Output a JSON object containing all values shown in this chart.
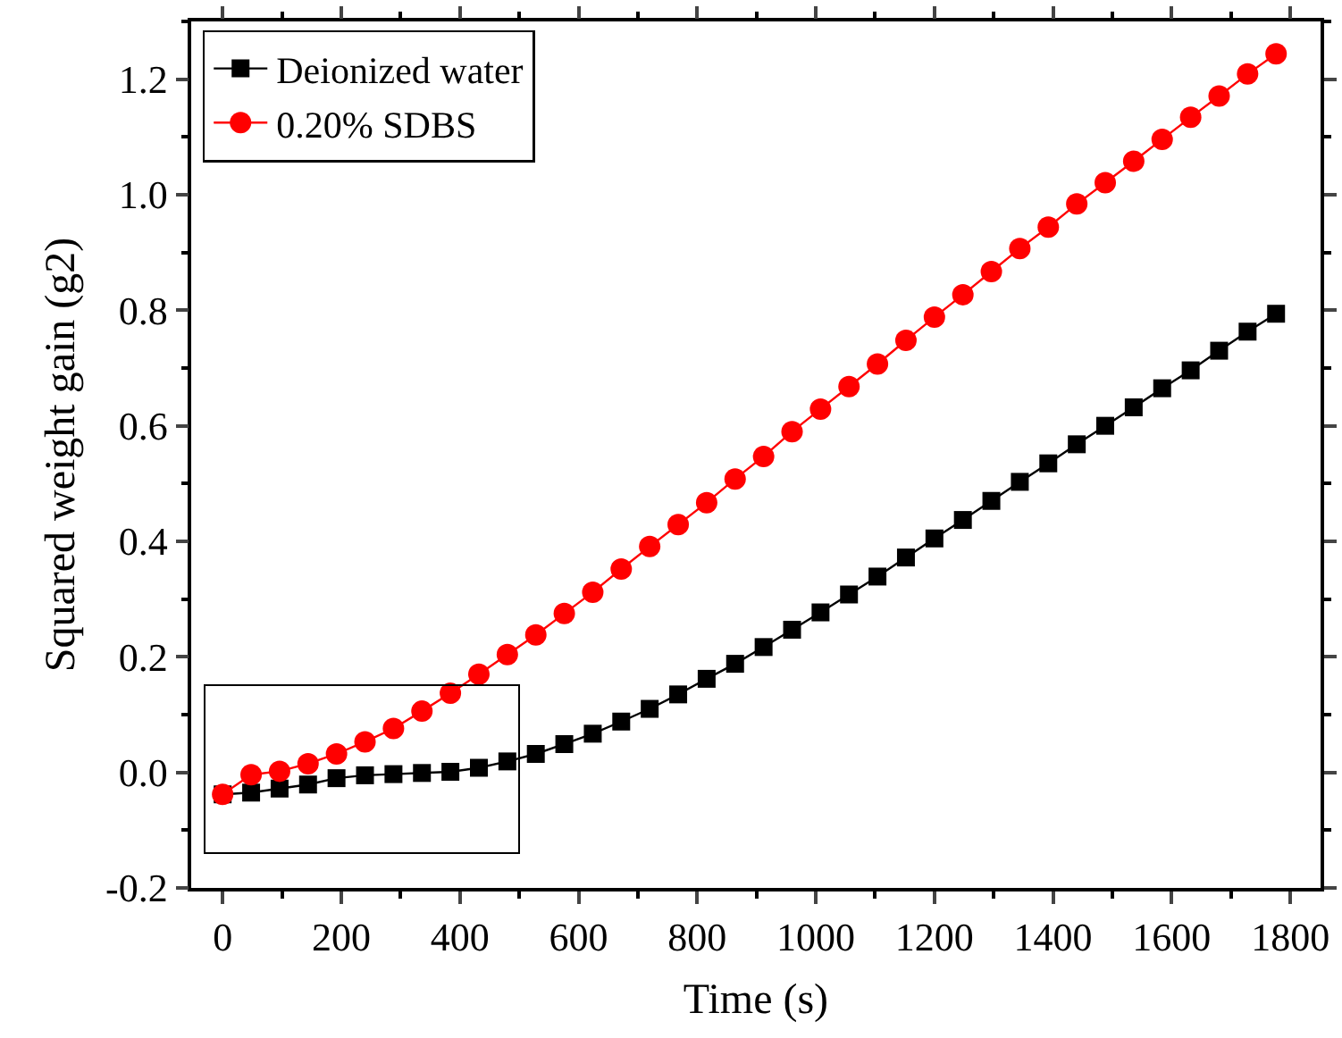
{
  "chart_data": {
    "type": "line",
    "xlabel": "Time (s)",
    "ylabel": "Squared weight gain (g2)",
    "x": [
      0,
      48,
      96,
      144,
      192,
      240,
      288,
      336,
      384,
      432,
      480,
      528,
      576,
      624,
      672,
      720,
      768,
      816,
      864,
      912,
      960,
      1008,
      1056,
      1104,
      1152,
      1200,
      1248,
      1296,
      1344,
      1392,
      1440,
      1488,
      1536,
      1584,
      1632,
      1680,
      1728,
      1776
    ],
    "series": [
      {
        "name": "Deionized water",
        "color": "#000000",
        "marker": "square",
        "values": [
          -0.038,
          -0.035,
          -0.028,
          -0.021,
          -0.01,
          -0.005,
          -0.003,
          -0.001,
          0.001,
          0.008,
          0.019,
          0.032,
          0.049,
          0.067,
          0.088,
          0.11,
          0.135,
          0.162,
          0.188,
          0.217,
          0.247,
          0.277,
          0.308,
          0.339,
          0.372,
          0.405,
          0.437,
          0.47,
          0.503,
          0.535,
          0.568,
          0.6,
          0.632,
          0.665,
          0.696,
          0.73,
          0.763,
          0.794
        ]
      },
      {
        "name": "0.20% SDBS",
        "color": "#ff0000",
        "marker": "circle",
        "values": [
          -0.038,
          -0.004,
          0.002,
          0.015,
          0.032,
          0.053,
          0.076,
          0.106,
          0.137,
          0.17,
          0.204,
          0.238,
          0.275,
          0.312,
          0.352,
          0.391,
          0.429,
          0.467,
          0.508,
          0.547,
          0.59,
          0.629,
          0.668,
          0.707,
          0.748,
          0.788,
          0.827,
          0.867,
          0.907,
          0.944,
          0.984,
          1.021,
          1.058,
          1.096,
          1.134,
          1.171,
          1.209,
          1.244
        ]
      }
    ],
    "xlim": [
      -53,
      1851
    ],
    "xticks": [
      0,
      200,
      400,
      600,
      800,
      1000,
      1200,
      1400,
      1600,
      1800
    ],
    "ylim": [
      -0.2,
      1.3
    ],
    "yticks": [
      {
        "value": -0.2,
        "label": "-0.2"
      },
      {
        "value": 0,
        "label": "0.0"
      },
      {
        "value": 0.2,
        "label": "0.2"
      },
      {
        "value": 0.4,
        "label": "0.4"
      },
      {
        "value": 0.6,
        "label": "0.6"
      },
      {
        "value": 0.8,
        "label": "0.8"
      },
      {
        "value": 1,
        "label": "1.0"
      },
      {
        "value": 1.2,
        "label": "1.2"
      }
    ],
    "grid": false,
    "legend": "top left",
    "line_style": "solid"
  }
}
